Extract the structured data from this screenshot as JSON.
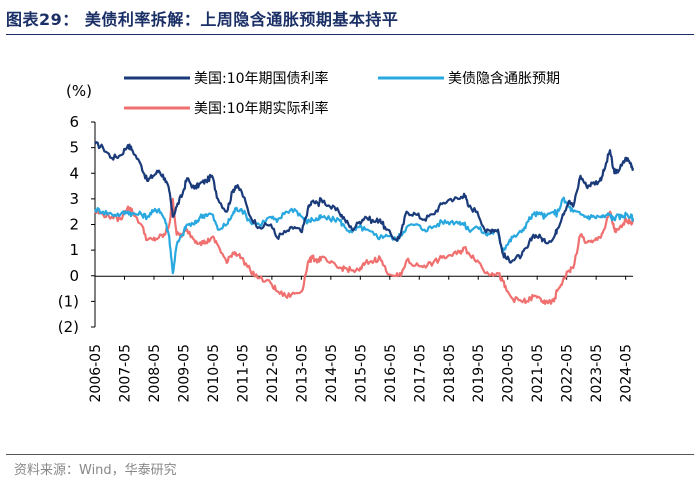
{
  "page": {
    "title": "图表29： 美债利率拆解：上周隐含通胀预期基本持平",
    "source": "资料来源：Wind，华泰研究"
  },
  "chart_data": {
    "type": "line",
    "ylabel": "(%)",
    "ylim": [
      -2,
      6
    ],
    "yticks": [
      6,
      5,
      4,
      3,
      2,
      1,
      0,
      -1,
      -2
    ],
    "ytick_labels": [
      "6",
      "5",
      "4",
      "3",
      "2",
      "1",
      "0",
      "(1)",
      "(2)"
    ],
    "xlim": [
      2006.33,
      2024.58
    ],
    "xticks": [
      2006.33,
      2007.33,
      2008.33,
      2009.33,
      2010.33,
      2011.33,
      2012.33,
      2013.33,
      2014.33,
      2015.33,
      2016.33,
      2017.33,
      2018.33,
      2019.33,
      2020.33,
      2021.33,
      2022.33,
      2023.33,
      2024.33
    ],
    "xtick_labels": [
      "2006-05",
      "2007-05",
      "2008-05",
      "2009-05",
      "2010-05",
      "2011-05",
      "2012-05",
      "2013-05",
      "2014-05",
      "2015-05",
      "2016-05",
      "2017-05",
      "2018-05",
      "2019-05",
      "2020-05",
      "2021-05",
      "2022-05",
      "2023-05",
      "2024-05"
    ],
    "grid": false,
    "legend_position": "top",
    "series": [
      {
        "name": "美国:10年期国债利率",
        "color": "#1a3a7a",
        "points": [
          [
            2006.33,
            5.15
          ],
          [
            2006.6,
            5.0
          ],
          [
            2006.9,
            4.6
          ],
          [
            2007.2,
            4.7
          ],
          [
            2007.45,
            5.1
          ],
          [
            2007.6,
            4.9
          ],
          [
            2007.9,
            4.3
          ],
          [
            2008.1,
            3.7
          ],
          [
            2008.3,
            3.9
          ],
          [
            2008.5,
            4.1
          ],
          [
            2008.7,
            3.8
          ],
          [
            2008.85,
            3.3
          ],
          [
            2008.97,
            2.3
          ],
          [
            2009.1,
            2.7
          ],
          [
            2009.3,
            3.2
          ],
          [
            2009.45,
            3.8
          ],
          [
            2009.7,
            3.4
          ],
          [
            2009.9,
            3.6
          ],
          [
            2010.1,
            3.7
          ],
          [
            2010.3,
            3.9
          ],
          [
            2010.5,
            3.0
          ],
          [
            2010.8,
            2.5
          ],
          [
            2011.0,
            3.3
          ],
          [
            2011.1,
            3.5
          ],
          [
            2011.3,
            3.3
          ],
          [
            2011.6,
            2.3
          ],
          [
            2011.9,
            1.9
          ],
          [
            2012.3,
            2.0
          ],
          [
            2012.5,
            1.5
          ],
          [
            2012.8,
            1.7
          ],
          [
            2013.1,
            1.9
          ],
          [
            2013.35,
            1.7
          ],
          [
            2013.55,
            2.6
          ],
          [
            2013.7,
            2.9
          ],
          [
            2013.9,
            2.8
          ],
          [
            2014.0,
            3.0
          ],
          [
            2014.3,
            2.7
          ],
          [
            2014.6,
            2.5
          ],
          [
            2014.8,
            2.2
          ],
          [
            2015.05,
            1.8
          ],
          [
            2015.3,
            2.1
          ],
          [
            2015.5,
            2.3
          ],
          [
            2015.8,
            2.1
          ],
          [
            2016.0,
            2.2
          ],
          [
            2016.2,
            1.8
          ],
          [
            2016.55,
            1.4
          ],
          [
            2016.7,
            1.6
          ],
          [
            2016.9,
            2.5
          ],
          [
            2017.2,
            2.4
          ],
          [
            2017.5,
            2.2
          ],
          [
            2017.8,
            2.4
          ],
          [
            2018.1,
            2.8
          ],
          [
            2018.4,
            3.0
          ],
          [
            2018.7,
            3.0
          ],
          [
            2018.85,
            3.2
          ],
          [
            2019.0,
            2.7
          ],
          [
            2019.3,
            2.5
          ],
          [
            2019.6,
            1.7
          ],
          [
            2019.8,
            1.8
          ],
          [
            2020.0,
            1.8
          ],
          [
            2020.15,
            0.9
          ],
          [
            2020.3,
            0.65
          ],
          [
            2020.5,
            0.6
          ],
          [
            2020.8,
            0.8
          ],
          [
            2021.0,
            1.1
          ],
          [
            2021.2,
            1.6
          ],
          [
            2021.45,
            1.5
          ],
          [
            2021.6,
            1.3
          ],
          [
            2021.9,
            1.5
          ],
          [
            2022.0,
            1.8
          ],
          [
            2022.2,
            2.4
          ],
          [
            2022.4,
            2.9
          ],
          [
            2022.55,
            2.7
          ],
          [
            2022.8,
            3.9
          ],
          [
            2023.0,
            3.5
          ],
          [
            2023.2,
            3.6
          ],
          [
            2023.45,
            3.7
          ],
          [
            2023.6,
            4.1
          ],
          [
            2023.8,
            4.9
          ],
          [
            2023.9,
            4.2
          ],
          [
            2024.0,
            4.0
          ],
          [
            2024.2,
            4.3
          ],
          [
            2024.35,
            4.6
          ],
          [
            2024.5,
            4.4
          ],
          [
            2024.58,
            4.2
          ]
        ]
      },
      {
        "name": "美债隐含通胀预期",
        "color": "#29a8e0",
        "points": [
          [
            2006.33,
            2.6
          ],
          [
            2006.6,
            2.5
          ],
          [
            2006.9,
            2.4
          ],
          [
            2007.2,
            2.4
          ],
          [
            2007.45,
            2.5
          ],
          [
            2007.6,
            2.4
          ],
          [
            2007.9,
            2.4
          ],
          [
            2008.1,
            2.3
          ],
          [
            2008.3,
            2.5
          ],
          [
            2008.5,
            2.6
          ],
          [
            2008.7,
            2.2
          ],
          [
            2008.85,
            1.5
          ],
          [
            2008.97,
            0.1
          ],
          [
            2009.1,
            1.2
          ],
          [
            2009.3,
            1.6
          ],
          [
            2009.45,
            2.0
          ],
          [
            2009.7,
            2.0
          ],
          [
            2009.9,
            2.3
          ],
          [
            2010.1,
            2.4
          ],
          [
            2010.3,
            2.4
          ],
          [
            2010.5,
            1.8
          ],
          [
            2010.8,
            2.0
          ],
          [
            2011.0,
            2.4
          ],
          [
            2011.1,
            2.6
          ],
          [
            2011.3,
            2.6
          ],
          [
            2011.6,
            2.1
          ],
          [
            2011.9,
            2.0
          ],
          [
            2012.3,
            2.3
          ],
          [
            2012.5,
            2.1
          ],
          [
            2012.8,
            2.5
          ],
          [
            2013.1,
            2.6
          ],
          [
            2013.35,
            2.3
          ],
          [
            2013.55,
            2.1
          ],
          [
            2013.7,
            2.2
          ],
          [
            2013.9,
            2.2
          ],
          [
            2014.0,
            2.3
          ],
          [
            2014.3,
            2.2
          ],
          [
            2014.6,
            2.2
          ],
          [
            2014.8,
            1.9
          ],
          [
            2015.05,
            1.7
          ],
          [
            2015.3,
            1.9
          ],
          [
            2015.5,
            1.8
          ],
          [
            2015.8,
            1.6
          ],
          [
            2016.0,
            1.5
          ],
          [
            2016.2,
            1.6
          ],
          [
            2016.55,
            1.4
          ],
          [
            2016.7,
            1.6
          ],
          [
            2016.9,
            1.9
          ],
          [
            2017.2,
            2.0
          ],
          [
            2017.5,
            1.8
          ],
          [
            2017.8,
            1.9
          ],
          [
            2018.1,
            2.1
          ],
          [
            2018.4,
            2.1
          ],
          [
            2018.7,
            2.1
          ],
          [
            2018.85,
            2.0
          ],
          [
            2019.0,
            1.8
          ],
          [
            2019.3,
            1.9
          ],
          [
            2019.6,
            1.6
          ],
          [
            2019.8,
            1.7
          ],
          [
            2020.0,
            1.7
          ],
          [
            2020.15,
            1.0
          ],
          [
            2020.3,
            1.2
          ],
          [
            2020.5,
            1.5
          ],
          [
            2020.8,
            1.7
          ],
          [
            2021.0,
            2.1
          ],
          [
            2021.2,
            2.4
          ],
          [
            2021.45,
            2.4
          ],
          [
            2021.6,
            2.3
          ],
          [
            2021.9,
            2.5
          ],
          [
            2022.0,
            2.4
          ],
          [
            2022.2,
            3.0
          ],
          [
            2022.4,
            2.7
          ],
          [
            2022.55,
            2.5
          ],
          [
            2022.8,
            2.4
          ],
          [
            2023.0,
            2.3
          ],
          [
            2023.2,
            2.3
          ],
          [
            2023.45,
            2.3
          ],
          [
            2023.6,
            2.3
          ],
          [
            2023.8,
            2.4
          ],
          [
            2023.9,
            2.2
          ],
          [
            2024.0,
            2.3
          ],
          [
            2024.2,
            2.3
          ],
          [
            2024.35,
            2.4
          ],
          [
            2024.5,
            2.3
          ],
          [
            2024.58,
            2.25
          ]
        ]
      },
      {
        "name": "美国:10年期实际利率",
        "color": "#f07070",
        "points": [
          [
            2006.33,
            2.5
          ],
          [
            2006.6,
            2.4
          ],
          [
            2006.9,
            2.3
          ],
          [
            2007.2,
            2.2
          ],
          [
            2007.45,
            2.7
          ],
          [
            2007.6,
            2.5
          ],
          [
            2007.9,
            2.0
          ],
          [
            2008.1,
            1.4
          ],
          [
            2008.3,
            1.4
          ],
          [
            2008.5,
            1.5
          ],
          [
            2008.7,
            1.6
          ],
          [
            2008.85,
            2.0
          ],
          [
            2008.97,
            3.0
          ],
          [
            2009.1,
            1.6
          ],
          [
            2009.3,
            1.6
          ],
          [
            2009.45,
            1.8
          ],
          [
            2009.7,
            1.4
          ],
          [
            2009.9,
            1.3
          ],
          [
            2010.1,
            1.3
          ],
          [
            2010.3,
            1.5
          ],
          [
            2010.5,
            1.2
          ],
          [
            2010.8,
            0.5
          ],
          [
            2011.0,
            0.9
          ],
          [
            2011.1,
            0.9
          ],
          [
            2011.3,
            0.7
          ],
          [
            2011.6,
            0.2
          ],
          [
            2011.9,
            -0.1
          ],
          [
            2012.3,
            -0.3
          ],
          [
            2012.5,
            -0.6
          ],
          [
            2012.8,
            -0.8
          ],
          [
            2013.1,
            -0.7
          ],
          [
            2013.35,
            -0.6
          ],
          [
            2013.55,
            0.5
          ],
          [
            2013.7,
            0.7
          ],
          [
            2013.9,
            0.6
          ],
          [
            2014.0,
            0.7
          ],
          [
            2014.3,
            0.5
          ],
          [
            2014.6,
            0.3
          ],
          [
            2014.8,
            0.3
          ],
          [
            2015.05,
            0.2
          ],
          [
            2015.3,
            0.2
          ],
          [
            2015.5,
            0.5
          ],
          [
            2015.8,
            0.6
          ],
          [
            2016.0,
            0.7
          ],
          [
            2016.2,
            0.2
          ],
          [
            2016.55,
            0.0
          ],
          [
            2016.7,
            0.0
          ],
          [
            2016.9,
            0.6
          ],
          [
            2017.2,
            0.4
          ],
          [
            2017.5,
            0.4
          ],
          [
            2017.8,
            0.5
          ],
          [
            2018.1,
            0.7
          ],
          [
            2018.4,
            0.8
          ],
          [
            2018.7,
            0.9
          ],
          [
            2018.85,
            1.1
          ],
          [
            2019.0,
            0.9
          ],
          [
            2019.3,
            0.6
          ],
          [
            2019.6,
            0.1
          ],
          [
            2019.8,
            0.1
          ],
          [
            2020.0,
            0.1
          ],
          [
            2020.15,
            -0.2
          ],
          [
            2020.3,
            -0.6
          ],
          [
            2020.5,
            -0.9
          ],
          [
            2020.8,
            -1.0
          ],
          [
            2021.0,
            -1.0
          ],
          [
            2021.2,
            -0.8
          ],
          [
            2021.45,
            -0.9
          ],
          [
            2021.6,
            -1.1
          ],
          [
            2021.9,
            -1.0
          ],
          [
            2022.0,
            -0.6
          ],
          [
            2022.2,
            -0.2
          ],
          [
            2022.4,
            0.2
          ],
          [
            2022.55,
            0.3
          ],
          [
            2022.8,
            1.6
          ],
          [
            2023.0,
            1.3
          ],
          [
            2023.2,
            1.3
          ],
          [
            2023.45,
            1.5
          ],
          [
            2023.6,
            1.8
          ],
          [
            2023.8,
            2.5
          ],
          [
            2023.9,
            2.0
          ],
          [
            2024.0,
            1.7
          ],
          [
            2024.2,
            1.9
          ],
          [
            2024.35,
            2.2
          ],
          [
            2024.5,
            2.1
          ],
          [
            2024.58,
            2.1
          ]
        ]
      }
    ]
  }
}
